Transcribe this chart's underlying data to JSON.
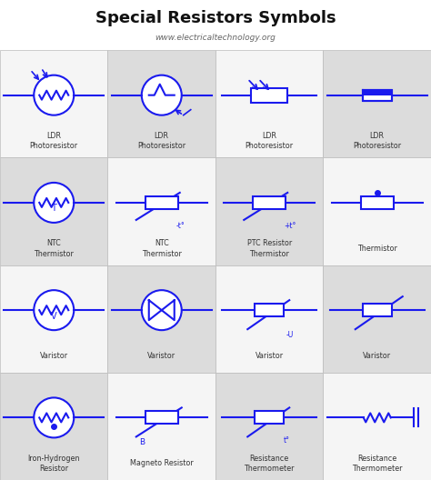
{
  "title": "Special Resistors Symbols",
  "subtitle": "www.electricaltechnology.org",
  "title_color": "#111111",
  "subtitle_color": "#666666",
  "label_color": "#333333",
  "blue": "#1a1aee",
  "bg_white": "#F5F5F5",
  "bg_gray": "#DCDCDC",
  "border_color": "#BBBBBB",
  "cells": [
    {
      "row": 0,
      "col": 0,
      "label": "LDR\nPhotoresistor",
      "bg": "white"
    },
    {
      "row": 0,
      "col": 1,
      "label": "LDR\nPhotoresistor",
      "bg": "gray"
    },
    {
      "row": 0,
      "col": 2,
      "label": "LDR\nPhotoresistor",
      "bg": "white"
    },
    {
      "row": 0,
      "col": 3,
      "label": "LDR\nPhotoresistor",
      "bg": "gray"
    },
    {
      "row": 1,
      "col": 0,
      "label": "NTC\nThermistor",
      "bg": "gray"
    },
    {
      "row": 1,
      "col": 1,
      "label": "NTC\nThermistor",
      "bg": "white"
    },
    {
      "row": 1,
      "col": 2,
      "label": "PTC Resistor\nThermistor",
      "bg": "gray"
    },
    {
      "row": 1,
      "col": 3,
      "label": "Thermistor",
      "bg": "white"
    },
    {
      "row": 2,
      "col": 0,
      "label": "Varistor",
      "bg": "white"
    },
    {
      "row": 2,
      "col": 1,
      "label": "Varistor",
      "bg": "gray"
    },
    {
      "row": 2,
      "col": 2,
      "label": "Varistor",
      "bg": "white"
    },
    {
      "row": 2,
      "col": 3,
      "label": "Varistor",
      "bg": "gray"
    },
    {
      "row": 3,
      "col": 0,
      "label": "Iron-Hydrogen\nResistor",
      "bg": "gray"
    },
    {
      "row": 3,
      "col": 1,
      "label": "Magneto Resistor",
      "bg": "white"
    },
    {
      "row": 3,
      "col": 2,
      "label": "Resistance\nThermometer",
      "bg": "gray"
    },
    {
      "row": 3,
      "col": 3,
      "label": "Resistance\nThermometer",
      "bg": "white"
    }
  ]
}
